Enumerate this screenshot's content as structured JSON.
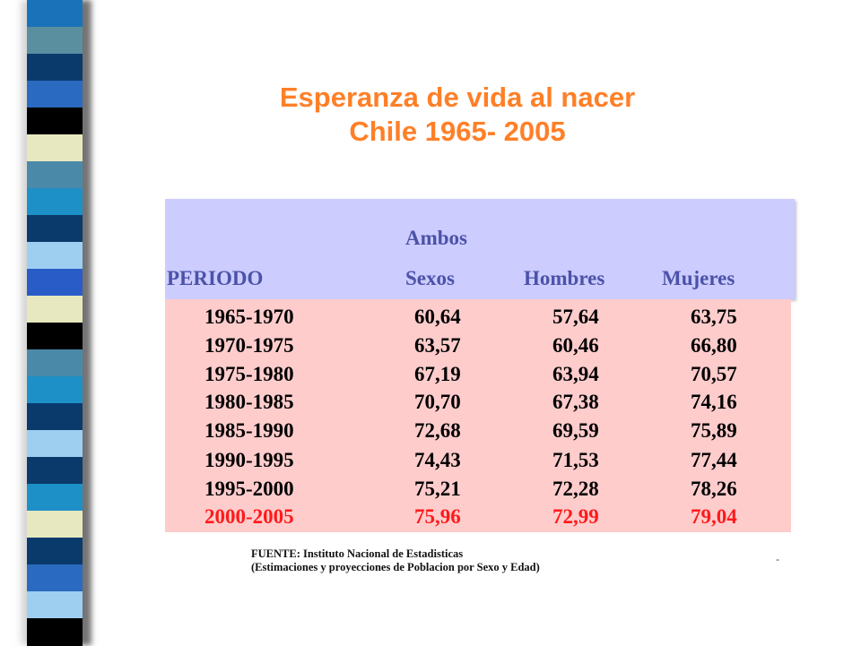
{
  "title": {
    "line1": "Esperanza de vida al nacer",
    "line2": "Chile 1965- 2005"
  },
  "table": {
    "header": {
      "ambos_top": "Ambos",
      "periodo": "PERIODO",
      "sexos": "Sexos",
      "hombres": "Hombres",
      "mujeres": "Mujeres"
    },
    "rows": [
      {
        "periodo": "1965-1970",
        "ambos": "60,64",
        "hombres": "57,64",
        "mujeres": "63,75"
      },
      {
        "periodo": "1970-1975",
        "ambos": "63,57",
        "hombres": "60,46",
        "mujeres": "66,80"
      },
      {
        "periodo": "1975-1980",
        "ambos": "67,19",
        "hombres": "63,94",
        "mujeres": "70,57"
      },
      {
        "periodo": "1980-1985",
        "ambos": "70,70",
        "hombres": "67,38",
        "mujeres": "74,16"
      },
      {
        "periodo": "1985-1990",
        "ambos": "72,68",
        "hombres": "69,59",
        "mujeres": "75,89"
      },
      {
        "periodo": "1990-1995",
        "ambos": "74,43",
        "hombres": "71,53",
        "mujeres": "77,44"
      },
      {
        "periodo": "1995-2000",
        "ambos": "75,21",
        "hombres": "72,28",
        "mujeres": "78,26"
      },
      {
        "periodo": "2000-2005",
        "ambos": "75,96",
        "hombres": "72,99",
        "mujeres": "79,04"
      }
    ]
  },
  "source": {
    "line1": "FUENTE: Instituto Nacional de Estadisticas",
    "line2": "(Estimaciones y proyecciones de Poblacion por Sexo y Edad)"
  },
  "colors": {
    "title": "#ff7f27",
    "header_bg": "#ccccff",
    "header_text": "#4b52a8",
    "body_bg": "#ffcccc",
    "highlight_row": "#ff1a1a",
    "stripes": [
      "#1a73b8",
      "#5a8fa0",
      "#0a3a6b",
      "#2a6ac0",
      "#000000",
      "#e8e8c0",
      "#4a8aa8",
      "#1e90c8",
      "#0a3a6b",
      "#9ecff0",
      "#2a5cc8",
      "#e8e8c0",
      "#000000",
      "#4a8aa8",
      "#1e90c8",
      "#0a3a6b",
      "#9ecff0",
      "#0a3a6b",
      "#1e90c8",
      "#e8e8c0",
      "#0a3a6b",
      "#2a6ac0",
      "#9ecff0",
      "#000000"
    ]
  }
}
